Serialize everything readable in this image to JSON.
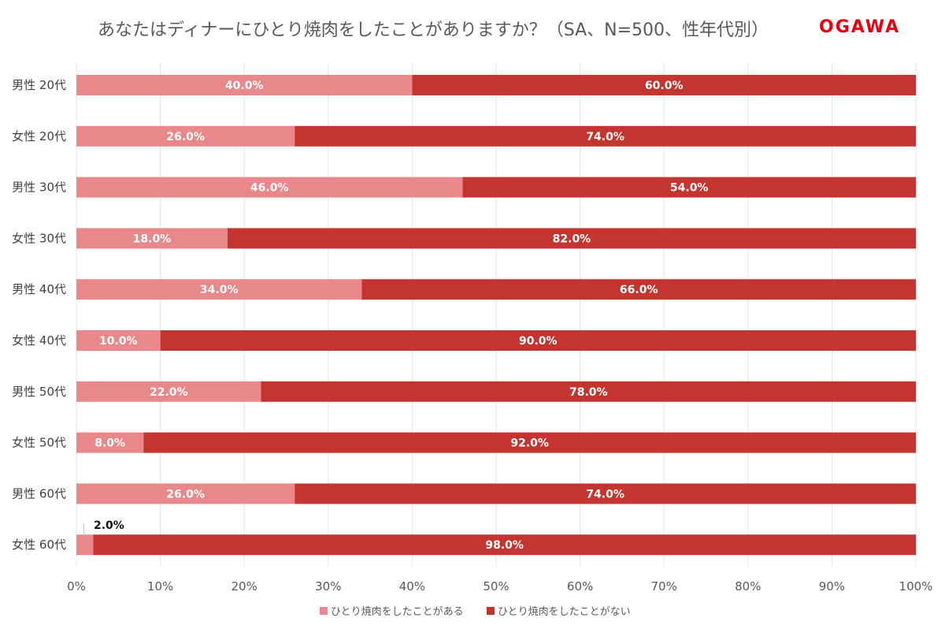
{
  "chart_data": {
    "type": "bar",
    "orientation": "horizontal",
    "stacked": "100%",
    "title": "あなたはディナーにひとり焼肉をしたことがありますか？（SA、N=500、性年代別）",
    "brand_logo": "OGAWA",
    "categories": [
      "男性 20代",
      "女性 20代",
      "男性 30代",
      "女性 30代",
      "男性 40代",
      "女性 40代",
      "男性 50代",
      "女性 50代",
      "男性 60代",
      "女性 60代"
    ],
    "series": [
      {
        "name": "ひとり焼肉をしたことがある",
        "color": "#E8888A",
        "values": [
          40.0,
          26.0,
          46.0,
          18.0,
          34.0,
          10.0,
          22.0,
          8.0,
          26.0,
          2.0
        ]
      },
      {
        "name": "ひとり焼肉をしたことがない",
        "color": "#C4352F",
        "values": [
          60.0,
          74.0,
          54.0,
          82.0,
          66.0,
          90.0,
          78.0,
          92.0,
          74.0,
          98.0
        ]
      }
    ],
    "xlim": [
      0,
      100
    ],
    "x_ticks": [
      "0%",
      "10%",
      "20%",
      "30%",
      "40%",
      "50%",
      "60%",
      "70%",
      "80%",
      "90%",
      "100%"
    ],
    "grid": true,
    "legend_position": "bottom"
  }
}
